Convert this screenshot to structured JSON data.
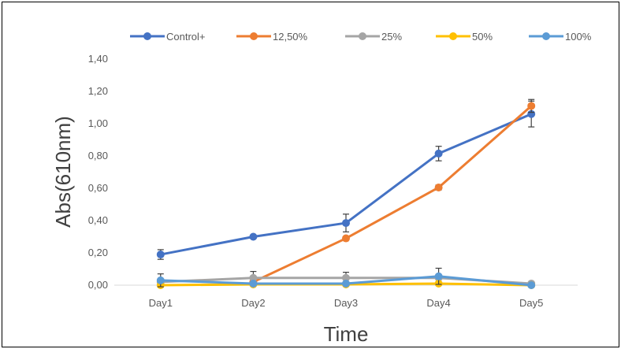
{
  "chart_data": {
    "type": "line",
    "title": "",
    "xlabel": "Time",
    "ylabel": "Abs(610nm)",
    "categories": [
      "Day1",
      "Day2",
      "Day3",
      "Day4",
      "Day5"
    ],
    "ylim": [
      0,
      1.4
    ],
    "yticks": [
      "0,00",
      "0,20",
      "0,40",
      "0,60",
      "0,80",
      "1,00",
      "1,20",
      "1,40"
    ],
    "grid": false,
    "legend_position": "top",
    "series": [
      {
        "name": "Control+",
        "color": "#4472C4",
        "values": [
          0.19,
          0.3,
          0.385,
          0.815,
          1.06
        ],
        "error": [
          0.03,
          0.0,
          0.055,
          0.045,
          0.08
        ]
      },
      {
        "name": "12,50%",
        "color": "#ED7D31",
        "values": [
          null,
          0.02,
          0.29,
          0.605,
          1.11
        ],
        "error": [
          null,
          0.0,
          0.0,
          0.015,
          0.04
        ]
      },
      {
        "name": "25%",
        "color": "#A5A5A5",
        "values": [
          0.02,
          0.045,
          0.045,
          0.045,
          0.01
        ],
        "error": [
          0.0,
          0.04,
          0.035,
          0.0,
          0.0
        ]
      },
      {
        "name": "50%",
        "color": "#FFC000",
        "values": [
          0.0,
          0.005,
          0.005,
          0.01,
          0.0
        ],
        "error": [
          0,
          0,
          0,
          0,
          0
        ]
      },
      {
        "name": "100%",
        "color": "#5B9BD5",
        "values": [
          0.03,
          0.01,
          0.01,
          0.055,
          0.0
        ],
        "error": [
          0.04,
          0.0,
          0.0,
          0.05,
          0.0
        ]
      }
    ]
  }
}
